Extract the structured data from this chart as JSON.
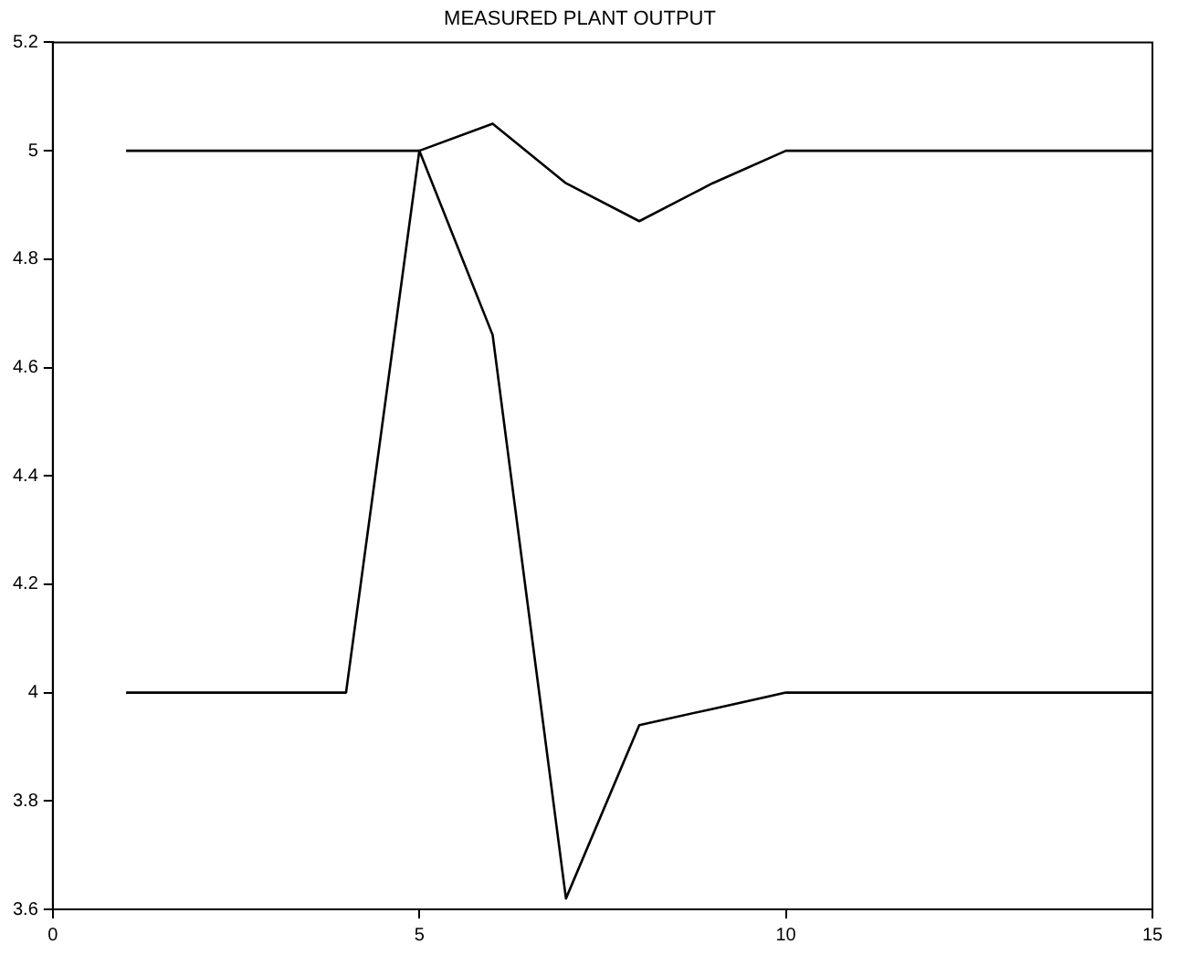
{
  "chart_data": {
    "type": "line",
    "title": "MEASURED PLANT OUTPUT",
    "x": [
      1,
      2,
      3,
      4,
      5,
      6,
      7,
      8,
      9,
      10,
      11,
      12,
      13,
      14,
      15
    ],
    "series": [
      {
        "color": "#000000",
        "values": [
          5,
          5,
          5,
          5,
          5,
          5.05,
          4.94,
          4.87,
          4.94,
          5,
          5,
          5,
          5,
          5,
          5
        ]
      },
      {
        "color": "#000000",
        "values": [
          4,
          4,
          4,
          4,
          5,
          4.66,
          3.62,
          3.94,
          3.97,
          4,
          4,
          4,
          4,
          4,
          4
        ]
      }
    ],
    "xlim": [
      0,
      15
    ],
    "xticks": [
      0,
      5,
      10,
      15
    ],
    "ylim": [
      3.6,
      5.2
    ],
    "yticks": [
      3.6,
      3.8,
      4,
      4.2,
      4.4,
      4.6,
      4.8,
      5,
      5.2
    ],
    "grid": false,
    "legend": false,
    "marker": "none",
    "line_style": "solid"
  }
}
